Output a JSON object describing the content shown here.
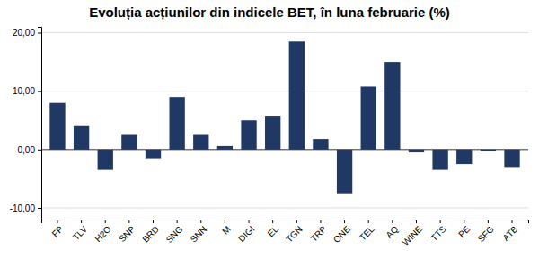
{
  "chart_data": {
    "type": "bar",
    "title": "Evoluția acțiunilor din indicele BET, în luna februarie (%)",
    "categories": [
      "FP",
      "TLV",
      "H2O",
      "SNP",
      "BRD",
      "SNG",
      "SNN",
      "M",
      "DIGI",
      "EL",
      "TGN",
      "TRP",
      "ONE",
      "TEL",
      "AQ",
      "WINE",
      "TTS",
      "PE",
      "SFG",
      "ATB"
    ],
    "values": [
      8.0,
      4.0,
      -3.5,
      2.5,
      -1.5,
      9.0,
      2.5,
      0.6,
      5.0,
      5.8,
      18.5,
      1.8,
      -7.5,
      10.8,
      15.0,
      -0.5,
      -3.5,
      -2.5,
      -0.3,
      -3.0
    ],
    "color": "#1F3864",
    "ylim": [
      -12,
      21
    ],
    "yticks": [
      {
        "value": -10,
        "label": "-10,00"
      },
      {
        "value": 0,
        "label": "0,00"
      },
      {
        "value": 10,
        "label": "10,00"
      },
      {
        "value": 20,
        "label": "20,00"
      }
    ],
    "grid": true
  }
}
